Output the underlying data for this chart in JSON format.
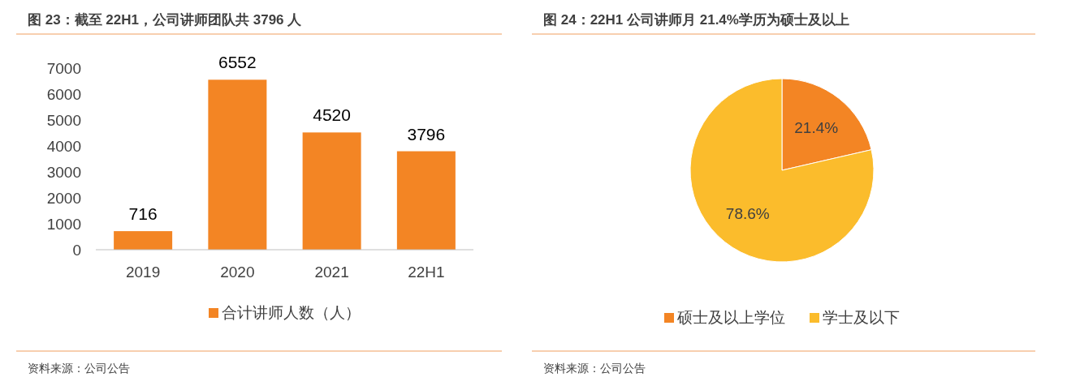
{
  "chart_data": [
    {
      "type": "bar",
      "title": "图 23：截至 22H1，公司讲师团队共 3796 人",
      "categories": [
        "2019",
        "2020",
        "2021",
        "22H1"
      ],
      "series": [
        {
          "name": "合计讲师人数（人）",
          "color": "#f38524",
          "values": [
            716,
            6552,
            4520,
            3796
          ]
        }
      ],
      "ylim": [
        0,
        7000
      ],
      "yticks": [
        0,
        1000,
        2000,
        3000,
        4000,
        5000,
        6000,
        7000
      ],
      "data_labels": true,
      "legend": "bottom",
      "grid": false,
      "annotations": [
        "资料来源：公司公告"
      ]
    },
    {
      "type": "pie",
      "title": "图 24：22H1 公司讲师月 21.4%学历为硕士及以上",
      "categories": [
        "硕士及以上学位",
        "学士及以下"
      ],
      "values": [
        21.4,
        78.6
      ],
      "colors": [
        "#f38524",
        "#fbbc2c"
      ],
      "value_labels": [
        "21.4%",
        "78.6%"
      ],
      "legend": "bottom",
      "annotations": [
        "资料来源：公司公告"
      ]
    }
  ]
}
